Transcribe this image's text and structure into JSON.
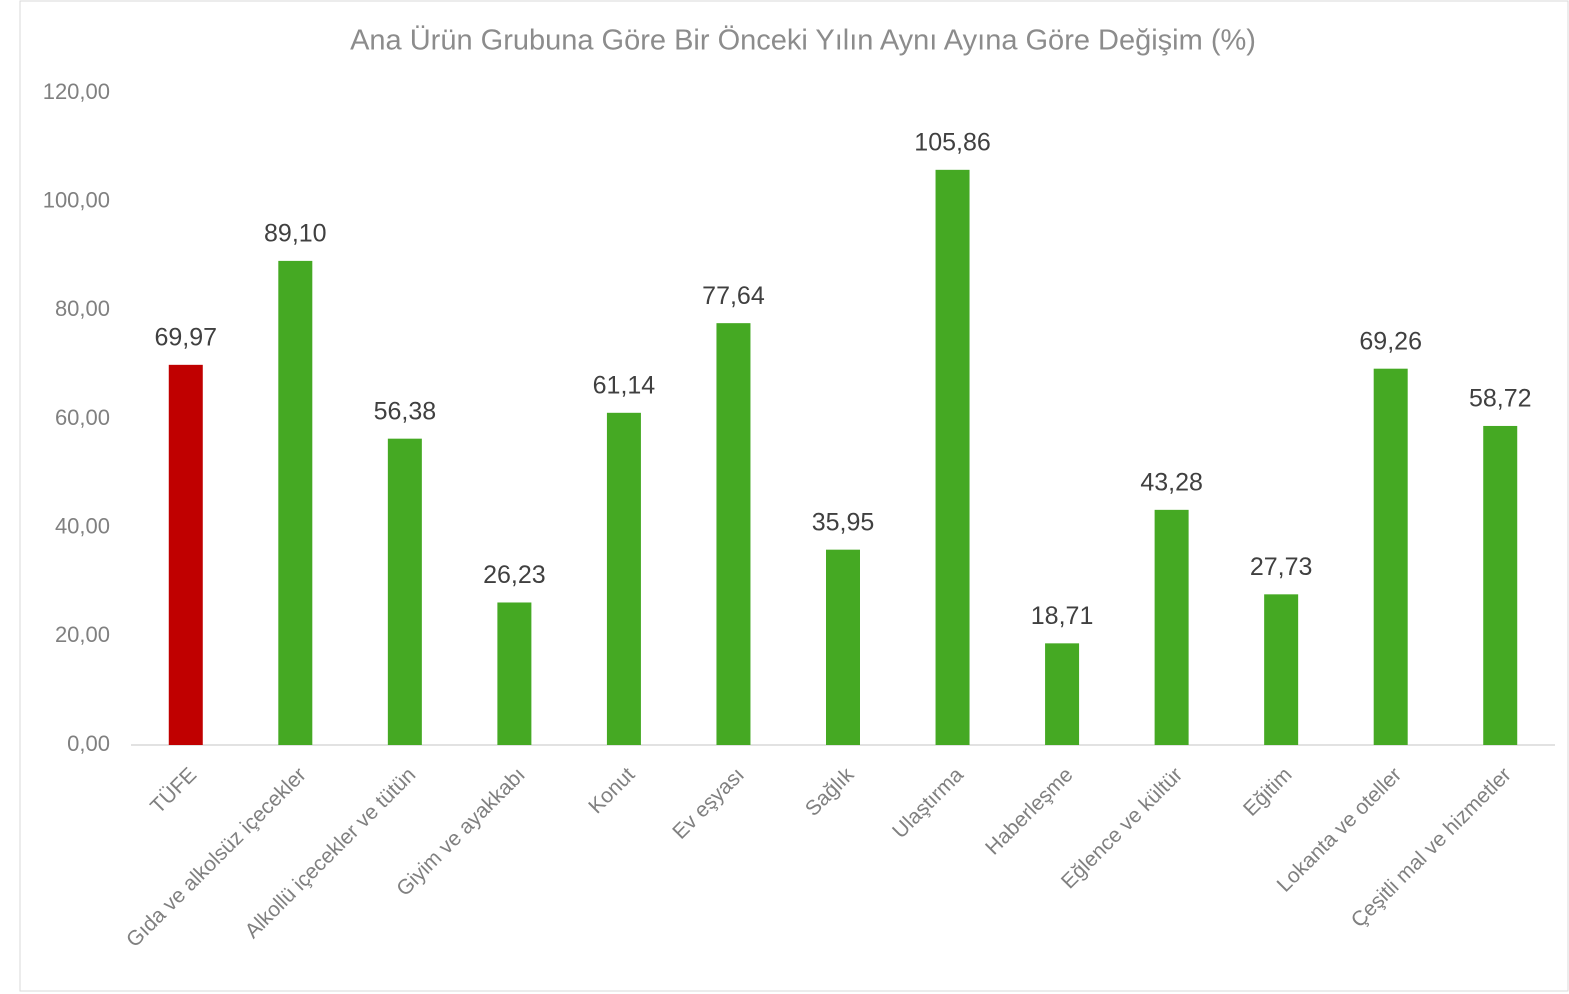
{
  "chart_data": {
    "type": "bar",
    "title": "Ana Ürün Grubuna Göre Bir Önceki Yılın Aynı Ayına Göre Değişim (%)",
    "categories": [
      "TÜFE",
      "Gıda ve alkolsüz içecekler",
      "Alkollü içecekler ve tütün",
      "Giyim ve ayakkabı",
      "Konut",
      "Ev eşyası",
      "Sağlık",
      "Ulaştırma",
      "Haberleşme",
      "Eğlence ve kültür",
      "Eğitim",
      "Lokanta ve oteller",
      "Çeşitli mal ve hizmetler"
    ],
    "values": [
      69.97,
      89.1,
      56.38,
      26.23,
      61.14,
      77.64,
      35.95,
      105.86,
      18.71,
      43.28,
      27.73,
      69.26,
      58.72
    ],
    "value_labels": [
      "69,97",
      "89,10",
      "56,38",
      "26,23",
      "61,14",
      "77,64",
      "35,95",
      "105,86",
      "18,71",
      "43,28",
      "27,73",
      "69,26",
      "58,72"
    ],
    "colors": [
      "#c00000",
      "#45a923",
      "#45a923",
      "#45a923",
      "#45a923",
      "#45a923",
      "#45a923",
      "#45a923",
      "#45a923",
      "#45a923",
      "#45a923",
      "#45a923",
      "#45a923"
    ],
    "ylim": [
      0,
      120
    ],
    "yticks": [
      {
        "value": 0,
        "label": "0,00"
      },
      {
        "value": 20,
        "label": "20,00"
      },
      {
        "value": 40,
        "label": "40,00"
      },
      {
        "value": 60,
        "label": "60,00"
      },
      {
        "value": 80,
        "label": "80,00"
      },
      {
        "value": 100,
        "label": "100,00"
      },
      {
        "value": 120,
        "label": "120,00"
      }
    ],
    "grid": false
  }
}
